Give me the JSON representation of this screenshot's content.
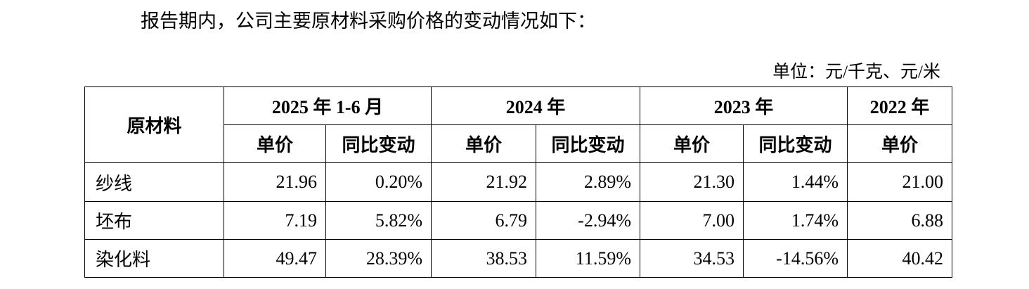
{
  "intro": "报告期内，公司主要原材料采购价格的变动情况如下：",
  "unit": "单位：元/千克、元/米",
  "table": {
    "material_header": "原材料",
    "periods": [
      "2025 年 1-6 月",
      "2024 年",
      "2023 年",
      "2022 年"
    ],
    "sub_headers": [
      "单价",
      "同比变动",
      "单价",
      "同比变动",
      "单价",
      "同比变动",
      "单价"
    ],
    "rows": [
      [
        "纱线",
        "21.96",
        "0.20%",
        "21.92",
        "2.89%",
        "21.30",
        "1.44%",
        "21.00"
      ],
      [
        "坯布",
        "7.19",
        "5.82%",
        "6.79",
        "-2.94%",
        "7.00",
        "1.74%",
        "6.88"
      ],
      [
        "染化料",
        "49.47",
        "28.39%",
        "38.53",
        "11.59%",
        "34.53",
        "-14.56%",
        "40.42"
      ]
    ]
  }
}
